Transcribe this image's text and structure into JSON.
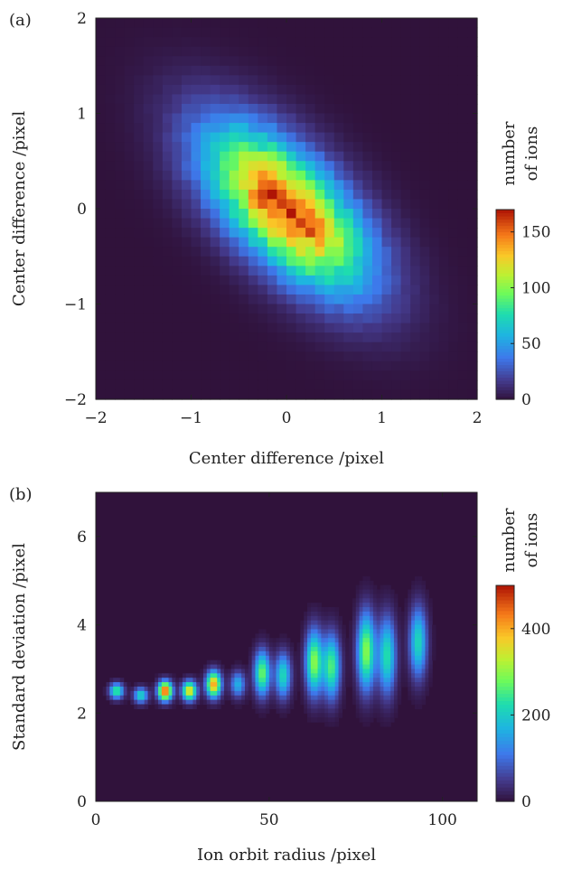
{
  "chart_data": [
    {
      "panel_label": "(a)",
      "type": "heatmap",
      "xlabel": "Center difference /pixel",
      "ylabel": "Center difference /pixel",
      "xlim": [
        -2,
        2
      ],
      "ylim": [
        -2,
        2
      ],
      "xticks": [
        -2,
        -1,
        0,
        1,
        2
      ],
      "yticks": [
        -2,
        -1,
        0,
        1,
        2
      ],
      "xtick_labels": [
        "−2",
        "−1",
        "0",
        "1",
        "2"
      ],
      "ytick_labels": [
        "−2",
        "−1",
        "0",
        "1",
        "2"
      ],
      "colorbar": {
        "label_line1": "number",
        "label_line2": "of ions",
        "range": [
          0,
          170
        ],
        "ticks": [
          0,
          50,
          100,
          150
        ],
        "tick_labels": [
          "0",
          "50",
          "100",
          "150"
        ]
      },
      "colormap": "turbo",
      "background_color": "#30123b",
      "distribution": {
        "shape": "tilted 2D gaussian (negative correlation)",
        "center": [
          0,
          0
        ],
        "sigma_major": 0.75,
        "sigma_minor": 0.36,
        "angle_deg": -45,
        "peak_count": 170,
        "secondary_peaks": [
          [
            -0.2,
            0.15
          ],
          [
            0.2,
            -0.2
          ]
        ]
      }
    },
    {
      "panel_label": "(b)",
      "type": "heatmap",
      "xlabel": "Ion orbit radius /pixel",
      "ylabel": "Standard deviation /pixel",
      "xlim": [
        0,
        110
      ],
      "ylim": [
        0,
        7
      ],
      "xticks": [
        0,
        50,
        100
      ],
      "yticks": [
        0,
        2,
        4,
        6
      ],
      "xtick_labels": [
        "0",
        "50",
        "100"
      ],
      "ytick_labels": [
        "0",
        "2",
        "4",
        "6"
      ],
      "colorbar": {
        "label_line1": "number",
        "label_line2": "of ions",
        "range": [
          0,
          500
        ],
        "ticks": [
          0,
          200,
          400
        ],
        "tick_labels": [
          "0",
          "200",
          "400"
        ]
      },
      "colormap": "turbo",
      "background_color": "#30123b",
      "clusters": [
        {
          "x": 6,
          "y": 2.5,
          "peak": 260,
          "y_spread": 0.12
        },
        {
          "x": 13,
          "y": 2.4,
          "peak": 220,
          "y_spread": 0.12
        },
        {
          "x": 20,
          "y": 2.5,
          "peak": 470,
          "y_spread": 0.15
        },
        {
          "x": 27,
          "y": 2.5,
          "peak": 380,
          "y_spread": 0.15
        },
        {
          "x": 34,
          "y": 2.65,
          "peak": 420,
          "y_spread": 0.2
        },
        {
          "x": 41,
          "y": 2.65,
          "peak": 170,
          "y_spread": 0.2
        },
        {
          "x": 48,
          "y": 2.9,
          "peak": 280,
          "y_spread": 0.35
        },
        {
          "x": 54,
          "y": 2.85,
          "peak": 220,
          "y_spread": 0.35
        },
        {
          "x": 63,
          "y": 3.15,
          "peak": 300,
          "y_spread": 0.5
        },
        {
          "x": 68,
          "y": 3.05,
          "peak": 260,
          "y_spread": 0.5
        },
        {
          "x": 78,
          "y": 3.4,
          "peak": 300,
          "y_spread": 0.6
        },
        {
          "x": 84,
          "y": 3.3,
          "peak": 230,
          "y_spread": 0.6
        },
        {
          "x": 93,
          "y": 3.6,
          "peak": 220,
          "y_spread": 0.55
        }
      ]
    }
  ]
}
